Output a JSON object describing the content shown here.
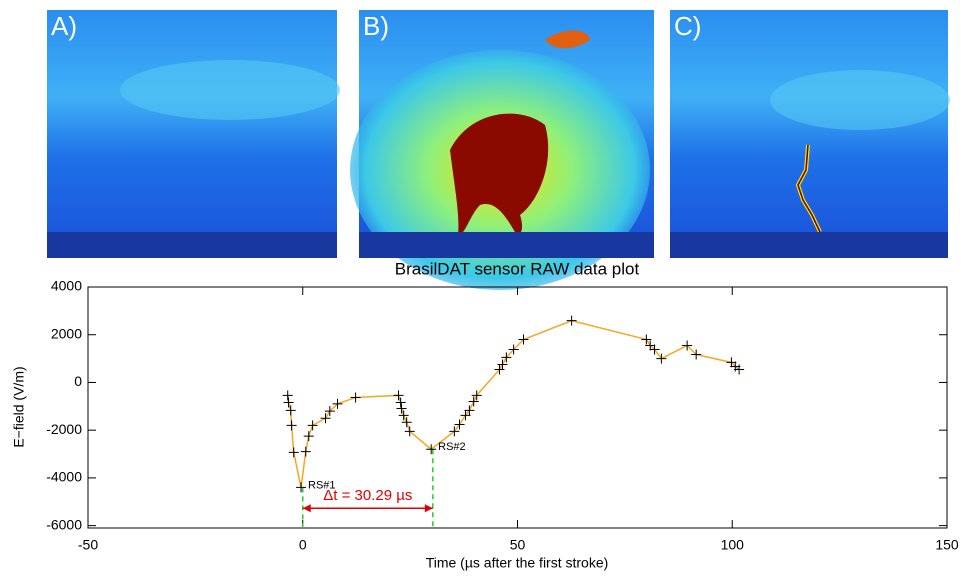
{
  "panels": [
    "A)",
    "B)",
    "C)"
  ],
  "chart_data": {
    "type": "line",
    "title": "BrasilDAT sensor RAW data plot",
    "x_label": "Time (µs after the first stroke)",
    "y_label": "E−field (V/m)",
    "xlim": [
      -50,
      150
    ],
    "xticks": [
      -50,
      0,
      50,
      100,
      150
    ],
    "ylim": [
      -6100,
      4000
    ],
    "yticks": [
      -6000,
      -4000,
      -2000,
      0,
      2000,
      4000
    ],
    "series": [
      {
        "color": "#f5a623",
        "x": [
          -3.5,
          -3.3,
          -2.8,
          -2.6,
          -2.1,
          -0.4,
          0.7,
          1.4,
          2.3,
          5.3,
          6.3,
          8.1,
          12.3,
          22.3,
          22.8,
          23,
          23.5,
          24.2,
          24.9,
          29.9,
          35.3,
          36.5,
          37.9,
          38.8,
          39.8,
          40.5,
          45.8,
          46.5,
          47.4,
          49.1,
          51.4,
          62.6,
          80,
          80.9,
          81.9,
          83.5,
          89.5,
          91.6,
          99.8,
          100.7,
          101.6
        ],
        "values": [
          -540,
          -840,
          -1170,
          -1800,
          -2930,
          -4400,
          -2900,
          -2250,
          -1800,
          -1500,
          -1200,
          -900,
          -630,
          -540,
          -840,
          -1090,
          -1380,
          -1670,
          -2050,
          -2800,
          -2050,
          -1760,
          -1380,
          -1170,
          -800,
          -540,
          540,
          750,
          1050,
          1380,
          1800,
          2590,
          1800,
          1550,
          1380,
          1000,
          1550,
          1170,
          840,
          670,
          540
        ]
      }
    ],
    "annotations": [
      {
        "text": "RS#1",
        "x": -0.4,
        "y": -4400
      },
      {
        "text": "RS#2",
        "x": 29.9,
        "y": -2800
      }
    ],
    "interval": {
      "label": "Δt = 30.29 µs",
      "start": 0,
      "end": 30.29,
      "y": -5270
    }
  }
}
